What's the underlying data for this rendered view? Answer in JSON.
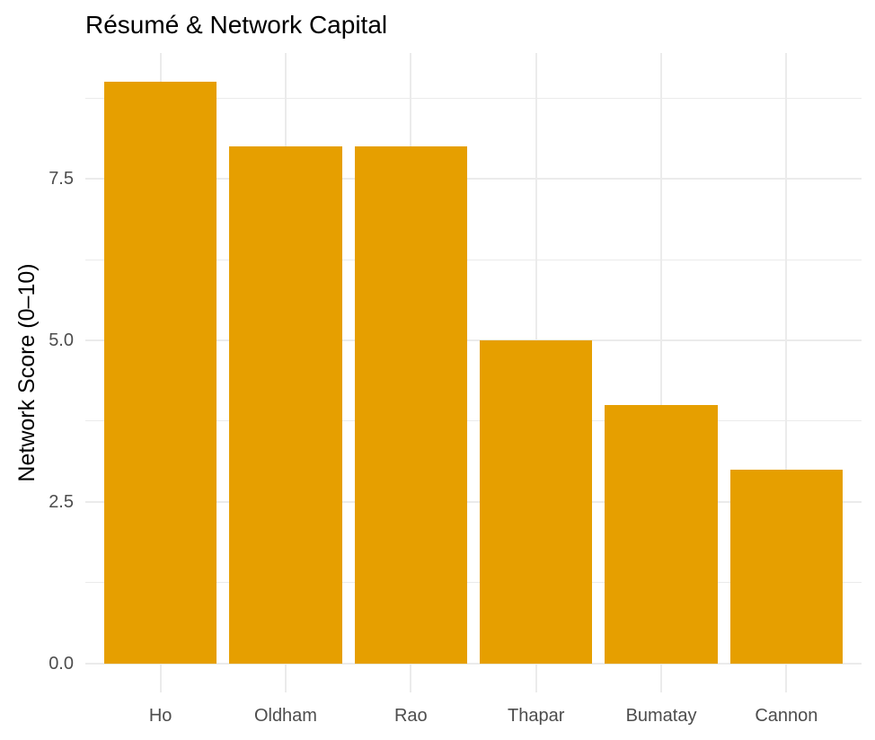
{
  "chart_data": {
    "type": "bar",
    "title": "Résumé & Network Capital",
    "xlabel": "",
    "ylabel": "Network Score (0–10)",
    "categories": [
      "Ho",
      "Oldham",
      "Rao",
      "Thapar",
      "Bumatay",
      "Cannon"
    ],
    "values": [
      9,
      8,
      8,
      5,
      4,
      3
    ],
    "y_ticks": [
      0.0,
      2.5,
      5.0,
      7.5
    ],
    "y_tick_labels": [
      "0.0",
      "2.5",
      "5.0",
      "7.5"
    ],
    "y_minor_ticks": [
      1.25,
      3.75,
      6.25,
      8.75
    ],
    "ylim": [
      0,
      9
    ],
    "grid": "major-and-minor",
    "legend": "none",
    "colors": {
      "bar": "#E69F00",
      "gridline": "#EBEBEB",
      "axis_text": "#4D4D4D",
      "title_text": "#000000",
      "background": "#FFFFFF"
    }
  }
}
